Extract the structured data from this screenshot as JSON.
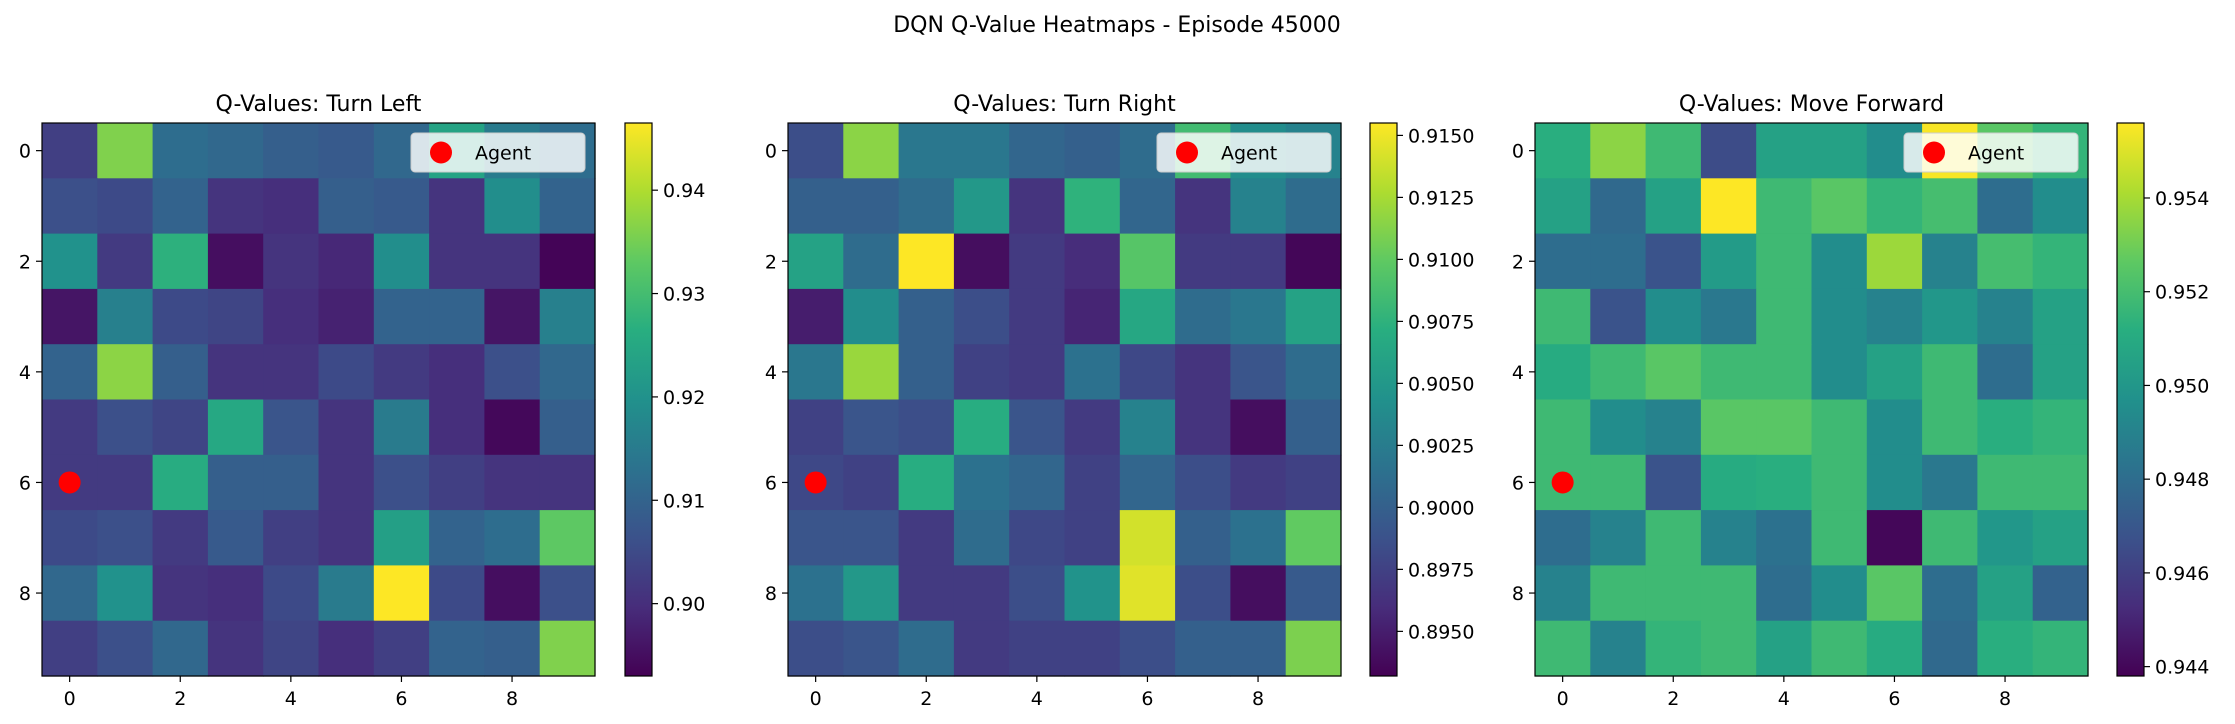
{
  "figure": {
    "suptitle": "DQN Q-Value Heatmaps - Episode 45000"
  },
  "chart_data": [
    {
      "type": "heatmap",
      "title": "Q-Values: Turn Left",
      "xlabel": "",
      "ylabel": "",
      "x_ticks": [
        "0",
        "2",
        "4",
        "6",
        "8"
      ],
      "y_ticks": [
        "0",
        "2",
        "4",
        "6",
        "8"
      ],
      "grid": false,
      "colormap": "viridis",
      "vmin": 0.893,
      "vmax": 0.9465,
      "colorbar_ticks": [
        "0.90",
        "0.91",
        "0.92",
        "0.93",
        "0.94"
      ],
      "colorbar_tick_values": [
        0.9,
        0.91,
        0.92,
        0.93,
        0.94
      ],
      "legend": {
        "label": "Agent",
        "position": "upper right"
      },
      "agent": {
        "row": 6,
        "col": 0,
        "color": "#ff0000"
      },
      "values": [
        [
          0.903,
          0.936,
          0.912,
          0.911,
          0.909,
          0.908,
          0.911,
          0.924,
          0.915,
          0.912
        ],
        [
          0.906,
          0.905,
          0.91,
          0.901,
          0.9,
          0.909,
          0.908,
          0.901,
          0.919,
          0.91
        ],
        [
          0.92,
          0.902,
          0.927,
          0.895,
          0.901,
          0.899,
          0.919,
          0.901,
          0.901,
          0.8935
        ],
        [
          0.896,
          0.916,
          0.905,
          0.904,
          0.9,
          0.898,
          0.91,
          0.91,
          0.896,
          0.916
        ],
        [
          0.91,
          0.937,
          0.909,
          0.901,
          0.901,
          0.905,
          0.902,
          0.9,
          0.906,
          0.911
        ],
        [
          0.902,
          0.906,
          0.904,
          0.925,
          0.907,
          0.901,
          0.915,
          0.9,
          0.894,
          0.909
        ],
        [
          0.902,
          0.902,
          0.926,
          0.909,
          0.909,
          0.901,
          0.906,
          0.903,
          0.901,
          0.901
        ],
        [
          0.905,
          0.906,
          0.902,
          0.908,
          0.903,
          0.901,
          0.923,
          0.91,
          0.912,
          0.933
        ],
        [
          0.911,
          0.92,
          0.901,
          0.9,
          0.905,
          0.915,
          0.9465,
          0.905,
          0.895,
          0.906
        ],
        [
          0.903,
          0.906,
          0.911,
          0.901,
          0.904,
          0.9,
          0.903,
          0.91,
          0.909,
          0.936
        ]
      ]
    },
    {
      "type": "heatmap",
      "title": "Q-Values: Turn Right",
      "xlabel": "",
      "ylabel": "",
      "x_ticks": [
        "0",
        "2",
        "4",
        "6",
        "8"
      ],
      "y_ticks": [
        "0",
        "2",
        "4",
        "6",
        "8"
      ],
      "grid": false,
      "colormap": "viridis",
      "vmin": 0.8932,
      "vmax": 0.9155,
      "colorbar_ticks": [
        "0.8950",
        "0.8975",
        "0.9000",
        "0.9025",
        "0.9050",
        "0.9075",
        "0.9100",
        "0.9125",
        "0.9150"
      ],
      "colorbar_tick_values": [
        0.895,
        0.8975,
        0.9,
        0.9025,
        0.905,
        0.9075,
        0.91,
        0.9125,
        0.915
      ],
      "legend": {
        "label": "Agent",
        "position": "upper right"
      },
      "agent": {
        "row": 6,
        "col": 0,
        "color": "#ff0000"
      },
      "values": [
        [
          0.8985,
          0.9115,
          0.902,
          0.902,
          0.9005,
          0.9,
          0.901,
          0.9085,
          0.904,
          0.903
        ],
        [
          0.9,
          0.9,
          0.901,
          0.905,
          0.8965,
          0.9075,
          0.9005,
          0.8965,
          0.903,
          0.901
        ],
        [
          0.906,
          0.901,
          0.9155,
          0.894,
          0.897,
          0.896,
          0.9095,
          0.897,
          0.897,
          0.8935
        ],
        [
          0.895,
          0.904,
          0.9,
          0.8985,
          0.897,
          0.8955,
          0.9065,
          0.901,
          0.902,
          0.906
        ],
        [
          0.902,
          0.912,
          0.9,
          0.8975,
          0.897,
          0.9015,
          0.898,
          0.8965,
          0.899,
          0.901
        ],
        [
          0.8975,
          0.899,
          0.8985,
          0.907,
          0.899,
          0.897,
          0.903,
          0.8965,
          0.894,
          0.9
        ],
        [
          0.898,
          0.8975,
          0.907,
          0.9015,
          0.9005,
          0.8975,
          0.9005,
          0.8985,
          0.897,
          0.8975
        ],
        [
          0.899,
          0.899,
          0.897,
          0.901,
          0.898,
          0.8975,
          0.914,
          0.9,
          0.9015,
          0.91
        ],
        [
          0.9015,
          0.905,
          0.897,
          0.897,
          0.8985,
          0.9045,
          0.9145,
          0.8985,
          0.894,
          0.8995
        ],
        [
          0.8985,
          0.899,
          0.901,
          0.897,
          0.8975,
          0.8975,
          0.8985,
          0.9,
          0.9,
          0.911
        ]
      ]
    },
    {
      "type": "heatmap",
      "title": "Q-Values: Move Forward",
      "xlabel": "",
      "ylabel": "",
      "x_ticks": [
        "0",
        "2",
        "4",
        "6",
        "8"
      ],
      "y_ticks": [
        "0",
        "2",
        "4",
        "6",
        "8"
      ],
      "grid": false,
      "colormap": "viridis",
      "vmin": 0.9438,
      "vmax": 0.9556,
      "colorbar_ticks": [
        "0.944",
        "0.946",
        "0.948",
        "0.950",
        "0.952",
        "0.954"
      ],
      "colorbar_tick_values": [
        0.944,
        0.946,
        0.948,
        0.95,
        0.952,
        0.954
      ],
      "legend": {
        "label": "Agent",
        "position": "upper right"
      },
      "agent": {
        "row": 6,
        "col": 0,
        "color": "#ff0000"
      },
      "values": [
        [
          0.9512,
          0.9535,
          0.9518,
          0.9465,
          0.9505,
          0.9505,
          0.9495,
          0.9555,
          0.9525,
          0.9515
        ],
        [
          0.9505,
          0.9478,
          0.9505,
          0.9556,
          0.9518,
          0.9525,
          0.9515,
          0.952,
          0.948,
          0.9495
        ],
        [
          0.948,
          0.948,
          0.9468,
          0.9502,
          0.9518,
          0.9495,
          0.9538,
          0.949,
          0.952,
          0.9515
        ],
        [
          0.9518,
          0.9468,
          0.9495,
          0.9485,
          0.9518,
          0.9495,
          0.949,
          0.95,
          0.949,
          0.9505
        ],
        [
          0.951,
          0.9518,
          0.9525,
          0.9518,
          0.9518,
          0.9495,
          0.9505,
          0.9518,
          0.948,
          0.9505
        ],
        [
          0.9518,
          0.9495,
          0.949,
          0.9525,
          0.9525,
          0.9518,
          0.9495,
          0.9518,
          0.9512,
          0.9515
        ],
        [
          0.9518,
          0.9518,
          0.9468,
          0.951,
          0.9512,
          0.9518,
          0.9495,
          0.9485,
          0.9518,
          0.9518
        ],
        [
          0.948,
          0.949,
          0.9518,
          0.949,
          0.9482,
          0.9518,
          0.944,
          0.9518,
          0.95,
          0.9505
        ],
        [
          0.949,
          0.9518,
          0.9518,
          0.9518,
          0.948,
          0.9495,
          0.9525,
          0.948,
          0.9505,
          0.9475
        ],
        [
          0.9518,
          0.949,
          0.9515,
          0.9518,
          0.9505,
          0.9518,
          0.951,
          0.9478,
          0.9512,
          0.9515
        ]
      ]
    }
  ]
}
